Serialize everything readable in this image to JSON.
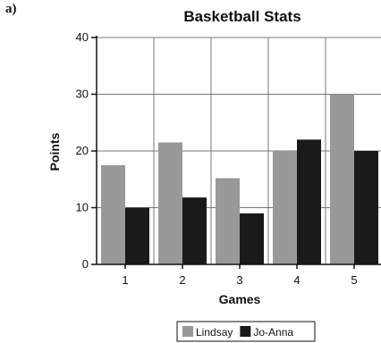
{
  "part_label": "a)",
  "chart_data": {
    "type": "bar",
    "title": "Basketball Stats",
    "xlabel": "Games",
    "ylabel": "Points",
    "categories": [
      "1",
      "2",
      "3",
      "4",
      "5"
    ],
    "ylim": [
      0,
      40
    ],
    "yticks": [
      0,
      10,
      20,
      30,
      40
    ],
    "grid": true,
    "legend_position": "bottom",
    "series": [
      {
        "name": "Lindsay",
        "values": [
          17.5,
          21.5,
          15.2,
          20,
          30
        ],
        "color": "#999999"
      },
      {
        "name": "Jo-Anna",
        "values": [
          10,
          11.8,
          9,
          22,
          20
        ],
        "color": "#1a1a1a"
      }
    ]
  }
}
